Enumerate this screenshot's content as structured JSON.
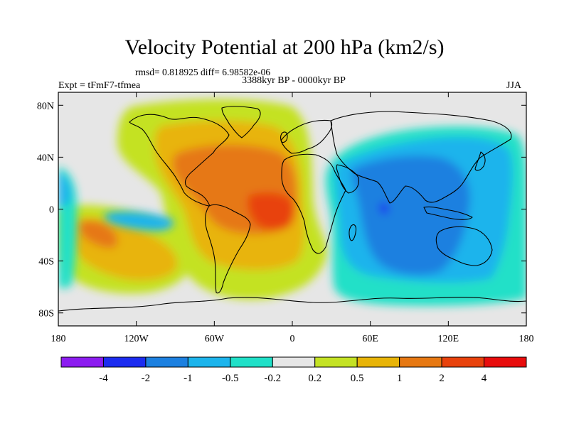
{
  "figure": {
    "title": "Velocity Potential at 200 hPa (km2/s)",
    "stats": "rmsd= 0.818925  diff= 6.98582e-06",
    "period": "3388kyr BP - 0000kyr BP",
    "experiment": "Expt = tFmF7-tfmea",
    "season": "JJA"
  },
  "chart_data": {
    "type": "heatmap",
    "title": "Velocity Potential at 200 hPa (km2/s)",
    "projection": "cylindrical-equidistant",
    "lon_range": [
      -180,
      180
    ],
    "lat_range": [
      -90,
      90
    ],
    "x_ticks": [
      {
        "value": -180,
        "label": "180"
      },
      {
        "value": -120,
        "label": "120W"
      },
      {
        "value": -60,
        "label": "60W"
      },
      {
        "value": 0,
        "label": "0"
      },
      {
        "value": 60,
        "label": "60E"
      },
      {
        "value": 120,
        "label": "120E"
      },
      {
        "value": 180,
        "label": "180"
      }
    ],
    "y_ticks": [
      {
        "value": 80,
        "label": "80N"
      },
      {
        "value": 40,
        "label": "40N"
      },
      {
        "value": 0,
        "label": "0"
      },
      {
        "value": -40,
        "label": "40S"
      },
      {
        "value": -80,
        "label": "80S"
      }
    ],
    "colorbar": {
      "levels": [
        -4,
        -2,
        -1,
        -0.5,
        -0.2,
        0.2,
        0.5,
        1,
        2,
        4
      ],
      "labels": [
        "-4",
        "-2",
        "-1",
        "-0.5",
        "-0.2",
        "0.2",
        "0.5",
        "1",
        "2",
        "4"
      ],
      "colors": [
        "#8c1cf0",
        "#1c2cf0",
        "#1c80e0",
        "#1cb4ec",
        "#20e0c8",
        "#e6e6e6",
        "#c4e224",
        "#e8b408",
        "#e67812",
        "#e8420c",
        "#e80c0c"
      ]
    },
    "field_features": [
      {
        "sign": "positive",
        "center_lon": -15,
        "center_lat": 0,
        "peak_interval": "2 to 4",
        "region": "Tropical Atlantic"
      },
      {
        "sign": "positive",
        "center_lon": -160,
        "center_lat": -20,
        "peak_interval": "1 to 2",
        "region": "South Pacific"
      },
      {
        "sign": "negative",
        "center_lon": 75,
        "center_lat": 0,
        "peak_interval": "-4 to -2",
        "region": "Indian Ocean"
      },
      {
        "sign": "negative",
        "center_lon": 110,
        "center_lat": 0,
        "peak_interval": "-2 to -1",
        "region": "Maritime Continent / Indo-Pacific"
      }
    ]
  }
}
